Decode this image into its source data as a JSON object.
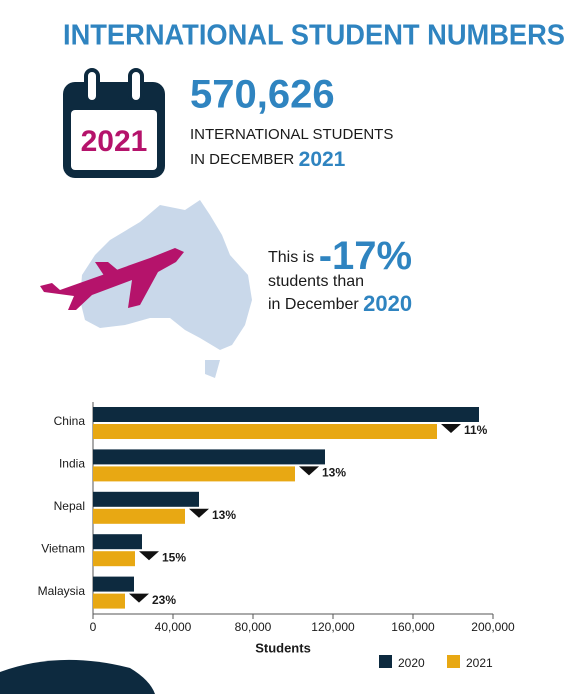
{
  "header": {
    "title": "INTERNATIONAL STUDENT NUMBERS",
    "calendar_year": "2021",
    "total": "570,626",
    "total_line1": "INTERNATIONAL STUDENTS",
    "total_line2": "IN DECEMBER",
    "total_year": "2021",
    "change_prefix": "This is",
    "change": "-17%",
    "change_line2": "students than",
    "change_line3": "in December",
    "change_year": "2020"
  },
  "chart_data": {
    "type": "bar",
    "orientation": "horizontal",
    "categories": [
      "China",
      "India",
      "Nepal",
      "Vietnam",
      "Malaysia"
    ],
    "series": [
      {
        "name": "2020",
        "color": "#0d2a3f",
        "values": [
          193000,
          116000,
          53000,
          24500,
          20500
        ]
      },
      {
        "name": "2021",
        "color": "#e8a813",
        "values": [
          172000,
          101000,
          46000,
          21000,
          16000
        ]
      }
    ],
    "changes": [
      "11%",
      "13%",
      "13%",
      "15%",
      "23%"
    ],
    "xlabel": "Students",
    "xlim": [
      0,
      200000
    ],
    "xticks": [
      0,
      {
        "value": 40000,
        "label": "40,000"
      },
      {
        "value": 80000,
        "label": "80,000"
      },
      {
        "value": 120000,
        "label": "120,000"
      },
      {
        "value": 160000,
        "label": "160,000"
      },
      {
        "value": 200000,
        "label": "200,000"
      }
    ],
    "legend": "bottom-right"
  }
}
